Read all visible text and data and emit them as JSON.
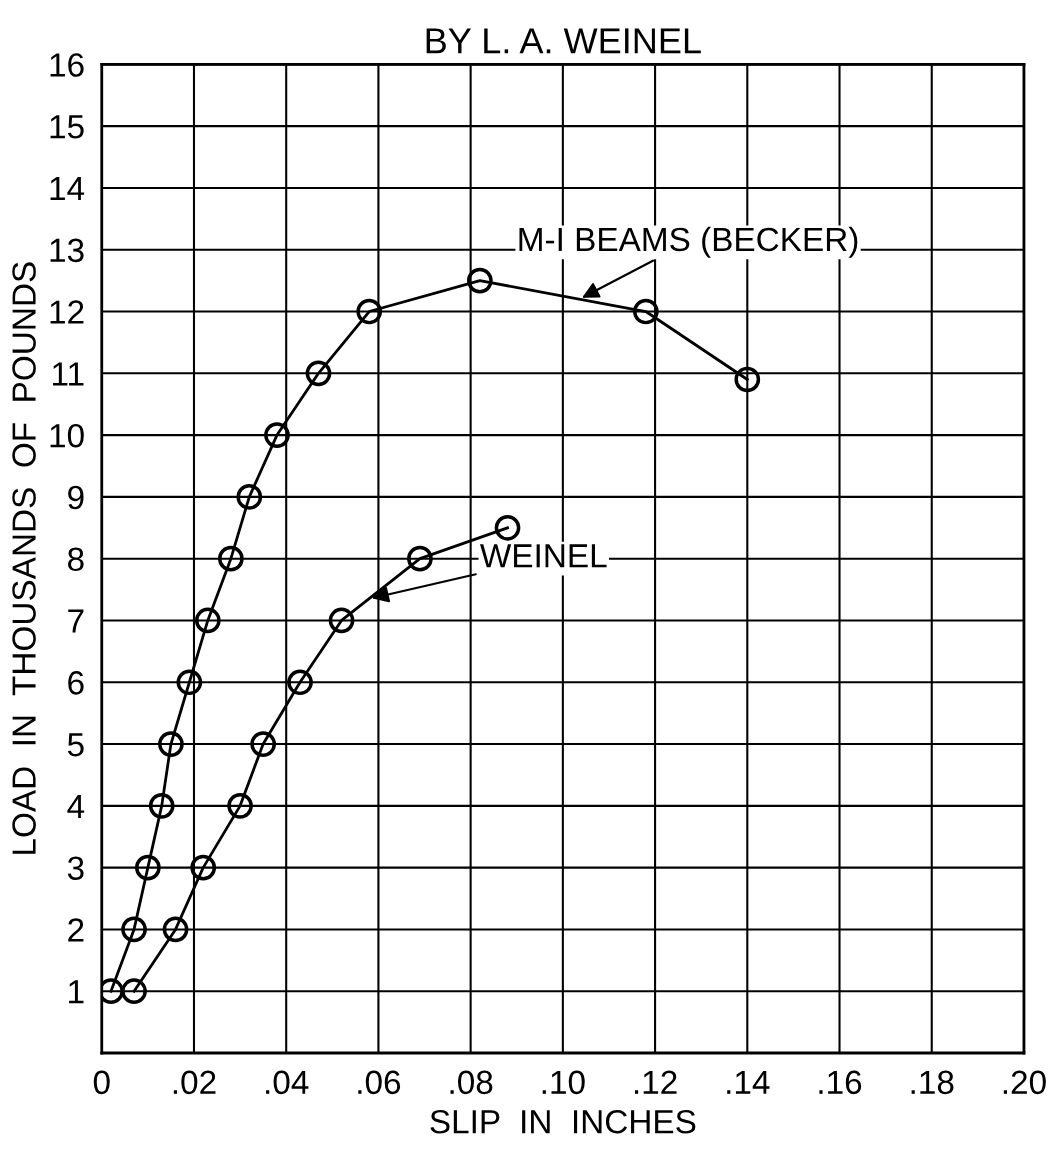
{
  "chart_data": {
    "type": "line",
    "title": "BY L. A. WEINEL",
    "xlabel": "SLIP  IN  INCHES",
    "ylabel": "LOAD  IN  THOUSANDS  OF  POUNDS",
    "series": [
      {
        "name": "M-I BEAMS (BECKER)",
        "color": "#000000",
        "x": [
          0.002,
          0.007,
          0.01,
          0.013,
          0.015,
          0.019,
          0.023,
          0.028,
          0.032,
          0.038,
          0.047,
          0.058,
          0.082,
          0.118,
          0.14
        ],
        "values": [
          1,
          2,
          3,
          4,
          5,
          6,
          7,
          8,
          9,
          10,
          11,
          12,
          12.5,
          12,
          10.9
        ]
      },
      {
        "name": "WEINEL",
        "color": "#000000",
        "x": [
          0.007,
          0.016,
          0.022,
          0.03,
          0.035,
          0.043,
          0.052,
          0.069,
          0.088
        ],
        "values": [
          1,
          2,
          3,
          4,
          5,
          6,
          7,
          8,
          8.5
        ]
      }
    ],
    "xlim": [
      0,
      0.2
    ],
    "ylim": [
      0,
      16
    ],
    "xticks": [
      {
        "value": 0,
        "label": "0"
      },
      {
        "value": 0.02,
        "label": ".02"
      },
      {
        "value": 0.04,
        "label": ".04"
      },
      {
        "value": 0.06,
        "label": ".06"
      },
      {
        "value": 0.08,
        "label": ".08"
      },
      {
        "value": 0.1,
        "label": ".10"
      },
      {
        "value": 0.12,
        "label": ".12"
      },
      {
        "value": 0.14,
        "label": ".14"
      },
      {
        "value": 0.16,
        "label": ".16"
      },
      {
        "value": 0.18,
        "label": ".18"
      },
      {
        "value": 0.2,
        "label": ".20"
      }
    ],
    "yticks": [
      1,
      2,
      3,
      4,
      5,
      6,
      7,
      8,
      9,
      10,
      11,
      12,
      13,
      14,
      15,
      16
    ],
    "grid": true,
    "legend": false,
    "marker": "circle",
    "line_style": "solid"
  }
}
